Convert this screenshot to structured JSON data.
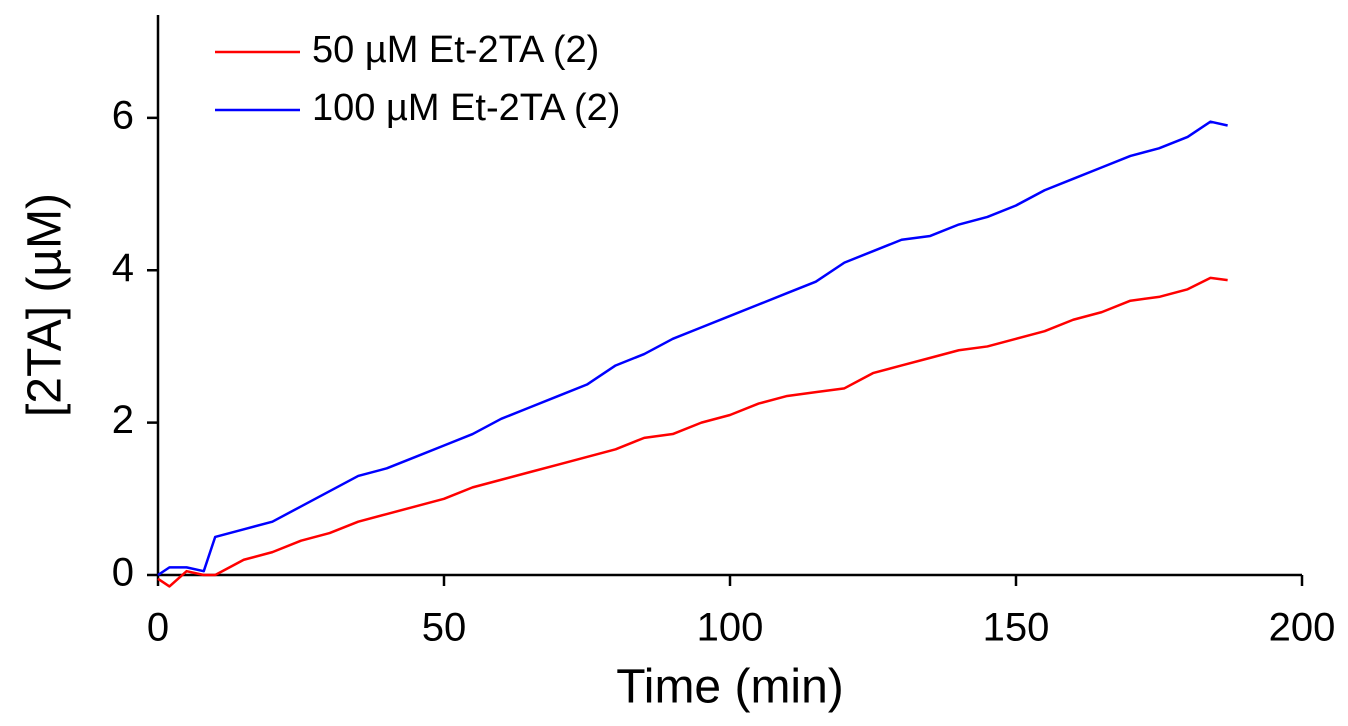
{
  "chart_data": {
    "type": "line",
    "x_label": "Time (min)",
    "y_label": "[2TA] (µM)",
    "x": [
      0,
      2,
      5,
      8,
      10,
      15,
      20,
      25,
      30,
      35,
      40,
      45,
      50,
      55,
      60,
      65,
      70,
      75,
      80,
      85,
      90,
      95,
      100,
      105,
      110,
      115,
      120,
      125,
      130,
      135,
      140,
      145,
      150,
      155,
      160,
      165,
      170,
      175,
      180,
      184,
      187
    ],
    "series": [
      {
        "name": "50 µM Et-2TA (2)",
        "color": "#ff0000",
        "values": [
          -0.05,
          -0.15,
          0.05,
          0.0,
          0.0,
          0.2,
          0.3,
          0.45,
          0.55,
          0.7,
          0.8,
          0.9,
          1.0,
          1.15,
          1.25,
          1.35,
          1.45,
          1.55,
          1.65,
          1.8,
          1.85,
          2.0,
          2.1,
          2.25,
          2.35,
          2.4,
          2.45,
          2.65,
          2.75,
          2.85,
          2.95,
          3.0,
          3.1,
          3.2,
          3.35,
          3.45,
          3.6,
          3.65,
          3.75,
          3.9,
          3.87
        ]
      },
      {
        "name": "100 µM Et-2TA (2)",
        "color": "#0000ff",
        "values": [
          0,
          0.1,
          0.1,
          0.05,
          0.5,
          0.6,
          0.7,
          0.9,
          1.1,
          1.3,
          1.4,
          1.55,
          1.7,
          1.85,
          2.05,
          2.2,
          2.35,
          2.5,
          2.75,
          2.9,
          3.1,
          3.25,
          3.4,
          3.55,
          3.7,
          3.85,
          4.1,
          4.25,
          4.4,
          4.45,
          4.6,
          4.7,
          4.85,
          5.05,
          5.2,
          5.35,
          5.5,
          5.6,
          5.75,
          5.95,
          5.9
        ]
      }
    ],
    "xlim": [
      0,
      200
    ],
    "xticks": [
      0,
      50,
      100,
      150,
      200
    ],
    "ylim": [
      0,
      7.35
    ],
    "yticks": [
      0,
      2,
      4,
      6
    ],
    "legend": "top-left",
    "grid": false
  }
}
